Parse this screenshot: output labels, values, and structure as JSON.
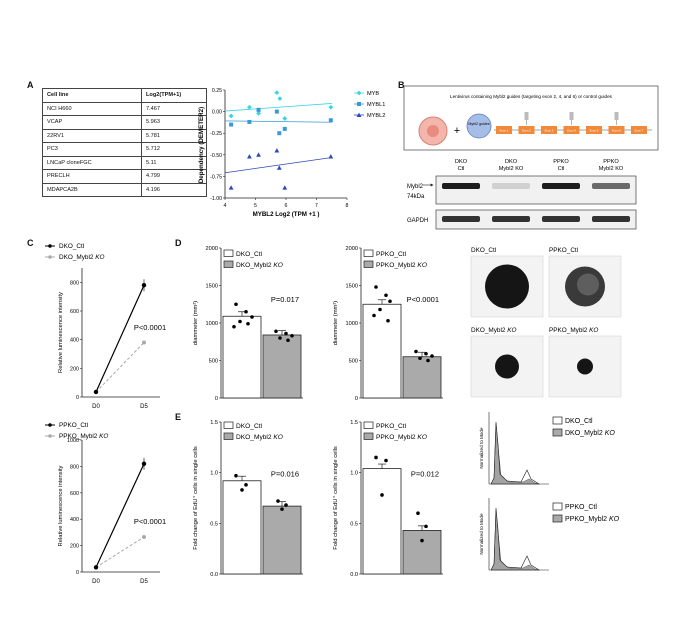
{
  "panels": {
    "A": "A",
    "B": "B",
    "C": "C",
    "D": "D",
    "E": "E"
  },
  "table": {
    "header": [
      "Cell line",
      "Log2(TPM+1)"
    ],
    "rows": [
      [
        "NCI H660",
        "7.467"
      ],
      [
        "VCAP",
        "5.963"
      ],
      [
        "22RV1",
        "5.781"
      ],
      [
        "PC3",
        "5.712"
      ],
      [
        "LNCaP cloneFGC",
        "5.11"
      ],
      [
        "PRECLH",
        "4.799"
      ],
      [
        "MDAPCA2B",
        "4.196"
      ]
    ]
  },
  "scatter": {
    "ylabel": "Dependency (DEMETER2)",
    "xlabel": "MYBL2 Log2 (TPM +1 )",
    "xticks": [
      "4",
      "5",
      "6",
      "7",
      "8"
    ],
    "yticks": [
      "0.25",
      "0.00",
      "-0.25",
      "-0.50",
      "-0.75",
      "-1.00"
    ],
    "legend": [
      "MYB",
      "MYBL1",
      "MYBL2"
    ],
    "colors": {
      "MYB": "#36d6e7",
      "MYBL1": "#3a9ad9",
      "MYBL2": "#2b48b8"
    }
  },
  "chart_data": [
    {
      "type": "scatter",
      "xlim": [
        4,
        8
      ],
      "ylim": [
        -1.0,
        0.25
      ],
      "series": [
        {
          "name": "MYB",
          "points": [
            [
              4.2,
              -0.05
            ],
            [
              4.8,
              0.05
            ],
            [
              5.1,
              -0.02
            ],
            [
              5.7,
              0.22
            ],
            [
              5.8,
              0.15
            ],
            [
              5.96,
              -0.08
            ],
            [
              7.47,
              0.05
            ]
          ]
        },
        {
          "name": "MYBL1",
          "points": [
            [
              4.2,
              -0.15
            ],
            [
              4.8,
              -0.12
            ],
            [
              5.1,
              0.02
            ],
            [
              5.7,
              0.0
            ],
            [
              5.78,
              -0.25
            ],
            [
              5.96,
              -0.2
            ],
            [
              7.47,
              -0.1
            ]
          ]
        },
        {
          "name": "MYBL2",
          "points": [
            [
              4.2,
              -0.88
            ],
            [
              4.8,
              -0.52
            ],
            [
              5.1,
              -0.5
            ],
            [
              5.7,
              -0.45
            ],
            [
              5.78,
              -0.65
            ],
            [
              5.96,
              -0.88
            ],
            [
              7.47,
              -0.52
            ]
          ]
        }
      ]
    },
    {
      "type": "line",
      "categories": [
        "D0",
        "D5"
      ],
      "ylabel": "Relative luminescence intensity",
      "series": [
        {
          "name": "DKO_Ctl",
          "values": [
            35,
            780
          ]
        },
        {
          "name": "DKO_Mybl2 KO",
          "values": [
            35,
            380
          ]
        }
      ],
      "annotation": "P<0.0001"
    },
    {
      "type": "line",
      "categories": [
        "D0",
        "D5"
      ],
      "ylabel": "Relative luminescence intensity",
      "series": [
        {
          "name": "PPKO_Ctl",
          "values": [
            35,
            820
          ]
        },
        {
          "name": "PPKO_Mybl2 KO",
          "values": [
            35,
            265
          ]
        }
      ],
      "annotation": "P<0.0001"
    },
    {
      "type": "bar",
      "ylabel": "diammeter (mm²)",
      "ylim": [
        0,
        2000
      ],
      "categories": [
        "DKO_Ctl",
        "DKO_Mybl2 KO"
      ],
      "values": [
        1090,
        840
      ],
      "annotation": "P=0.017"
    },
    {
      "type": "bar",
      "ylabel": "diammeter (mm²)",
      "ylim": [
        0,
        2000
      ],
      "categories": [
        "PPKO_Ctl",
        "PPKO_Mybl2 KO"
      ],
      "values": [
        1250,
        550
      ],
      "annotation": "P<0.0001"
    },
    {
      "type": "bar",
      "ylabel": "Fold change of EdU⁺ cells in single cells",
      "ylim": [
        0,
        1.5
      ],
      "categories": [
        "DKO_Ctl",
        "DKO_Mybl2 KO"
      ],
      "values": [
        0.92,
        0.67
      ],
      "annotation": "P=0.016"
    },
    {
      "type": "bar",
      "ylabel": "Fold change of EdU⁺ cells in single cells",
      "ylim": [
        0,
        1.5
      ],
      "categories": [
        "PPKO_Ctl",
        "PPKO_Mybl2 KO"
      ],
      "values": [
        1.04,
        0.43
      ],
      "annotation": "P=0.012"
    }
  ],
  "panelB": {
    "lenti": "Lentivirus containing Mybl2 guides (targeting exon 2, 4, and 6) or control guides",
    "guides": "Mybl2 guides",
    "exons": [
      "Exon 1",
      "Exon 2",
      "Exon 3",
      "Exon 4",
      "Exon 5",
      "Exon 6",
      "Exon 7"
    ],
    "lanes": [
      [
        "DKO",
        "Ctl"
      ],
      [
        "DKO",
        "Mybl2 KO"
      ],
      [
        "PPKO",
        "Ctl"
      ],
      [
        "PPKO",
        "Mybl2 KO"
      ]
    ],
    "blot1": [
      "Mybl2",
      "74kDa"
    ],
    "blot2": "GAPDH"
  },
  "panelC": {
    "legend1": [
      "DKO_Ctl",
      "DKO_",
      "Mybl2",
      " KO"
    ],
    "legend2": [
      "PPKO_Ctl",
      "PPKO_",
      "Mybl2",
      " KO"
    ],
    "yticks1": [
      "800",
      "600",
      "400",
      "200",
      "0"
    ],
    "yticks2": [
      "1000",
      "800",
      "600",
      "400",
      "200",
      "0"
    ],
    "xticks": [
      "D0",
      "D5"
    ],
    "ylabel": "Relative luminescence intensity",
    "p": "P<0.0001"
  },
  "panelD": {
    "ylabel": "diammeter (mm²)",
    "yticks": [
      "2000",
      "1500",
      "1000",
      "500",
      "0"
    ],
    "leg1": [
      "DKO_Ctl",
      "DKO_",
      "Mybl2",
      " KO"
    ],
    "leg2": [
      "PPKO_Ctl",
      "PPKO_",
      "Mybl2",
      " KO"
    ],
    "p1": "P=0.017",
    "p2": "P<0.0001",
    "imgs": [
      [
        "DKO_Ctl",
        "",
        ""
      ],
      [
        "PPKO_Ctl",
        "",
        ""
      ],
      [
        "DKO_",
        "Mybl2",
        " KO"
      ],
      [
        "PPKO_",
        "Mybl2",
        " KO"
      ]
    ]
  },
  "panelE": {
    "ylabel": "Fold change of EdU⁺ cells in single cells",
    "yticks": [
      "1.5",
      "1.0",
      "0.5",
      "0.0"
    ],
    "leg1": [
      "DKO_Ctl",
      "DKO_",
      "Mybl2",
      " KO"
    ],
    "leg2": [
      "PPKO_Ctl",
      "PPKO_",
      "Mybl2",
      " KO"
    ],
    "p1": "P=0.016",
    "p2": "P=0.012",
    "flow_ylabel": "Normalized to Mode"
  }
}
